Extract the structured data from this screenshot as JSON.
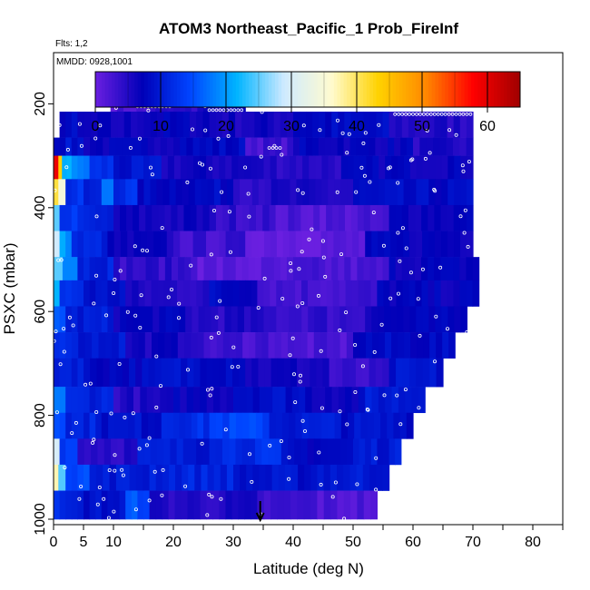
{
  "chart_data": {
    "type": "heatmap",
    "title": "ATOM3 Northeast_Pacific_1 Prob_FireInf",
    "annotations": [
      "Flts: 1,2",
      "MMDD: 0928,1001"
    ],
    "xlabel": "Latitude (deg N)",
    "ylabel": "PSXC (mbar)",
    "x_ticks": [
      "0",
      "5",
      "10",
      "20",
      "30",
      "40",
      "50",
      "60",
      "70",
      "80"
    ],
    "x_tick_values": [
      0,
      5,
      10,
      20,
      30,
      40,
      50,
      60,
      70,
      80
    ],
    "y_ticks": [
      "200",
      "400",
      "600",
      "800",
      "1000"
    ],
    "y_tick_values": [
      200,
      400,
      600,
      800,
      1000
    ],
    "xlim": [
      0,
      85
    ],
    "ylim": [
      1000,
      0
    ],
    "colorbar": {
      "ticks": [
        "0",
        "10",
        "20",
        "30",
        "40",
        "50",
        "60"
      ],
      "tick_values": [
        0,
        10,
        20,
        30,
        40,
        50,
        60
      ],
      "range": [
        0,
        65
      ],
      "colors": [
        "#6a1fe0",
        "#0000b8",
        "#0044ff",
        "#00b4ff",
        "#cfeaff",
        "#fffbd0",
        "#ffd200",
        "#ff8800",
        "#ff0000",
        "#a00000"
      ]
    },
    "arrow_marker": {
      "x": 34.5,
      "pressure": 1000
    },
    "rows": [
      {
        "p_top": 175,
        "p_bot": 215,
        "segments": [
          [
            9.5,
            16,
            2
          ],
          [
            16,
            24,
            4
          ],
          [
            24,
            32,
            6
          ]
        ]
      },
      {
        "p_top": 215,
        "p_bot": 265,
        "segments": [
          [
            1,
            4,
            8
          ],
          [
            4,
            14,
            6
          ],
          [
            14,
            26,
            7
          ],
          [
            26,
            40,
            6
          ],
          [
            40,
            56,
            8
          ],
          [
            56,
            70,
            5
          ]
        ]
      },
      {
        "p_top": 265,
        "p_bot": 300,
        "segments": [
          [
            0,
            5,
            9
          ],
          [
            5,
            20,
            7
          ],
          [
            20,
            32,
            8
          ],
          [
            32,
            40,
            3
          ],
          [
            40,
            60,
            7
          ],
          [
            60,
            70,
            5
          ]
        ]
      },
      {
        "p_top": 300,
        "p_bot": 345,
        "segments": [
          [
            0,
            0.8,
            58
          ],
          [
            0.8,
            1.4,
            44
          ],
          [
            1.4,
            3,
            22
          ],
          [
            3,
            6,
            18
          ],
          [
            6,
            10,
            12
          ],
          [
            10,
            18,
            9
          ],
          [
            18,
            34,
            6
          ],
          [
            34,
            48,
            5
          ],
          [
            48,
            70,
            7
          ]
        ]
      },
      {
        "p_top": 345,
        "p_bot": 395,
        "segments": [
          [
            0,
            0.8,
            42
          ],
          [
            0.8,
            2,
            34
          ],
          [
            2,
            5,
            12
          ],
          [
            5,
            8,
            10
          ],
          [
            8,
            10,
            18
          ],
          [
            10,
            14,
            12
          ],
          [
            14,
            30,
            8
          ],
          [
            30,
            50,
            5
          ],
          [
            50,
            70,
            8
          ]
        ]
      },
      {
        "p_top": 395,
        "p_bot": 445,
        "segments": [
          [
            0,
            1,
            24
          ],
          [
            1,
            5,
            13
          ],
          [
            5,
            10,
            10
          ],
          [
            10,
            26,
            6
          ],
          [
            26,
            36,
            4
          ],
          [
            36,
            56,
            2
          ],
          [
            56,
            70,
            7
          ]
        ]
      },
      {
        "p_top": 445,
        "p_bot": 495,
        "segments": [
          [
            0,
            1,
            30
          ],
          [
            1,
            3,
            20
          ],
          [
            3,
            9,
            11
          ],
          [
            9,
            20,
            6
          ],
          [
            20,
            32,
            3
          ],
          [
            32,
            52,
            1
          ],
          [
            52,
            70,
            7
          ]
        ]
      },
      {
        "p_top": 495,
        "p_bot": 540,
        "segments": [
          [
            0,
            1.5,
            26
          ],
          [
            1.5,
            4,
            19
          ],
          [
            4,
            10,
            11
          ],
          [
            10,
            24,
            4
          ],
          [
            24,
            40,
            1
          ],
          [
            40,
            56,
            2
          ],
          [
            56,
            71,
            7
          ]
        ]
      },
      {
        "p_top": 540,
        "p_bot": 590,
        "segments": [
          [
            0,
            1,
            22
          ],
          [
            1,
            5,
            12
          ],
          [
            5,
            12,
            9
          ],
          [
            12,
            26,
            5
          ],
          [
            26,
            34,
            8
          ],
          [
            34,
            54,
            3
          ],
          [
            54,
            71,
            7
          ]
        ]
      },
      {
        "p_top": 590,
        "p_bot": 640,
        "segments": [
          [
            0,
            2,
            16
          ],
          [
            2,
            10,
            10
          ],
          [
            10,
            22,
            7
          ],
          [
            22,
            34,
            5
          ],
          [
            34,
            52,
            4
          ],
          [
            52,
            69,
            7
          ]
        ]
      },
      {
        "p_top": 640,
        "p_bot": 690,
        "segments": [
          [
            0,
            3,
            13
          ],
          [
            3,
            12,
            10
          ],
          [
            12,
            24,
            6
          ],
          [
            24,
            38,
            3
          ],
          [
            38,
            50,
            2
          ],
          [
            50,
            67,
            8
          ]
        ]
      },
      {
        "p_top": 690,
        "p_bot": 745,
        "segments": [
          [
            0,
            5,
            11
          ],
          [
            5,
            18,
            8
          ],
          [
            18,
            32,
            9
          ],
          [
            32,
            46,
            6
          ],
          [
            46,
            56,
            3
          ],
          [
            56,
            65,
            9
          ]
        ]
      },
      {
        "p_top": 745,
        "p_bot": 795,
        "segments": [
          [
            0,
            2,
            18
          ],
          [
            2,
            10,
            11
          ],
          [
            10,
            20,
            5
          ],
          [
            20,
            30,
            7
          ],
          [
            30,
            42,
            9
          ],
          [
            42,
            52,
            7
          ],
          [
            52,
            62,
            10
          ]
        ]
      },
      {
        "p_top": 795,
        "p_bot": 845,
        "segments": [
          [
            0,
            2,
            16
          ],
          [
            2,
            8,
            11
          ],
          [
            8,
            18,
            9
          ],
          [
            18,
            26,
            12
          ],
          [
            26,
            36,
            14
          ],
          [
            36,
            48,
            10
          ],
          [
            48,
            60,
            9
          ]
        ]
      },
      {
        "p_top": 845,
        "p_bot": 895,
        "segments": [
          [
            0,
            1,
            30
          ],
          [
            1,
            4,
            14
          ],
          [
            4,
            14,
            5
          ],
          [
            14,
            26,
            10
          ],
          [
            26,
            38,
            12
          ],
          [
            38,
            50,
            8
          ],
          [
            50,
            58,
            10
          ]
        ]
      },
      {
        "p_top": 895,
        "p_bot": 945,
        "segments": [
          [
            0,
            0.8,
            38
          ],
          [
            0.8,
            2,
            26
          ],
          [
            2,
            6,
            15
          ],
          [
            6,
            16,
            10
          ],
          [
            16,
            30,
            11
          ],
          [
            30,
            44,
            9
          ],
          [
            44,
            56,
            10
          ]
        ]
      },
      {
        "p_top": 945,
        "p_bot": 1000,
        "segments": [
          [
            0,
            1,
            14
          ],
          [
            1,
            4,
            10
          ],
          [
            4,
            12,
            9
          ],
          [
            12,
            16,
            15
          ],
          [
            16,
            34,
            5
          ],
          [
            34,
            44,
            3
          ],
          [
            44,
            54,
            2
          ]
        ]
      }
    ]
  }
}
